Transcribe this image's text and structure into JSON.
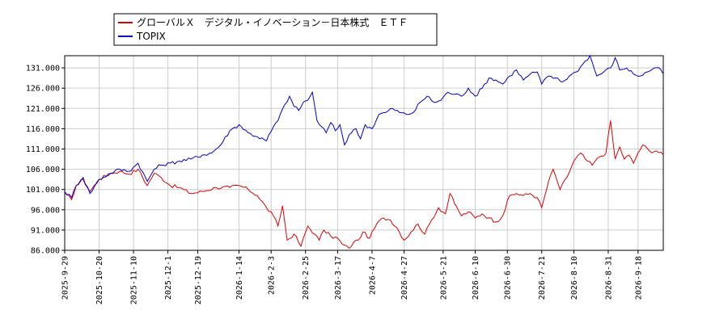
{
  "chart_data": {
    "type": "line",
    "ylim": [
      86,
      134
    ],
    "y_ticks": [
      "86.000",
      "91.000",
      "96.000",
      "101.000",
      "106.000",
      "111.000",
      "116.000",
      "121.000",
      "126.000",
      "131.000"
    ],
    "y_tick_values": [
      86,
      91,
      96,
      101,
      106,
      111,
      116,
      121,
      126,
      131
    ],
    "x_tick_labels": [
      "2025-9-29",
      "2025-10-20",
      "2025-11-10",
      "2025-12-1",
      "2025-12-19",
      "2026-1-14",
      "2026-2-3",
      "2026-2-25",
      "2026-3-17",
      "2026-4-7",
      "2026-4-27",
      "2026-5-21",
      "2026-6-10",
      "2026-6-30",
      "2026-7-21",
      "2026-8-10",
      "2026-8-31",
      "2026-9-18"
    ],
    "x_tick_index": [
      0,
      15,
      30,
      45,
      58,
      76,
      90,
      105,
      119,
      134,
      148,
      165,
      179,
      193,
      208,
      222,
      237,
      250
    ],
    "n_points": 262,
    "grid": true,
    "legend_position": "top-left",
    "series": [
      {
        "name": "グローバルＸ　デジタル・イノベーション－日本株式　ＥＴＦ",
        "color": "#dd0000",
        "keypoints": [
          [
            0,
            100
          ],
          [
            3,
            98.5
          ],
          [
            5,
            102
          ],
          [
            8,
            103.5
          ],
          [
            11,
            100.5
          ],
          [
            15,
            103.5
          ],
          [
            20,
            105
          ],
          [
            24,
            105.5
          ],
          [
            28,
            104.8
          ],
          [
            32,
            106
          ],
          [
            36,
            102
          ],
          [
            39,
            105
          ],
          [
            42,
            104
          ],
          [
            46,
            102
          ],
          [
            50,
            101.5
          ],
          [
            55,
            100
          ],
          [
            60,
            100.5
          ],
          [
            66,
            101.5
          ],
          [
            72,
            101.5
          ],
          [
            76,
            102
          ],
          [
            80,
            101
          ],
          [
            84,
            99.5
          ],
          [
            88,
            96.5
          ],
          [
            91,
            94.5
          ],
          [
            93,
            92
          ],
          [
            95,
            97
          ],
          [
            97,
            88.5
          ],
          [
            100,
            90
          ],
          [
            103,
            87
          ],
          [
            106,
            92
          ],
          [
            109,
            90
          ],
          [
            111,
            88.5
          ],
          [
            113,
            91
          ],
          [
            116,
            89.5
          ],
          [
            119,
            89
          ],
          [
            121,
            87.5
          ],
          [
            124,
            86.5
          ],
          [
            126,
            88
          ],
          [
            128,
            88.5
          ],
          [
            130,
            90.5
          ],
          [
            133,
            89
          ],
          [
            136,
            92.5
          ],
          [
            139,
            94
          ],
          [
            142,
            93.5
          ],
          [
            145,
            91.5
          ],
          [
            148,
            88.5
          ],
          [
            151,
            90.5
          ],
          [
            154,
            92.5
          ],
          [
            157,
            90
          ],
          [
            160,
            93.5
          ],
          [
            163,
            96.5
          ],
          [
            166,
            95
          ],
          [
            168,
            100
          ],
          [
            170,
            97.5
          ],
          [
            173,
            94.5
          ],
          [
            176,
            95.5
          ],
          [
            179,
            94
          ],
          [
            182,
            95
          ],
          [
            185,
            94
          ],
          [
            188,
            93
          ],
          [
            191,
            94.5
          ],
          [
            194,
            99.5
          ],
          [
            197,
            100
          ],
          [
            200,
            99.5
          ],
          [
            203,
            100
          ],
          [
            206,
            99
          ],
          [
            208,
            96.5
          ],
          [
            211,
            103
          ],
          [
            213,
            106
          ],
          [
            216,
            101
          ],
          [
            219,
            104
          ],
          [
            222,
            108
          ],
          [
            225,
            110
          ],
          [
            227,
            108.5
          ],
          [
            230,
            107
          ],
          [
            233,
            109
          ],
          [
            236,
            110
          ],
          [
            238,
            118
          ],
          [
            240,
            108.5
          ],
          [
            242,
            111.5
          ],
          [
            244,
            108.5
          ],
          [
            246,
            109.5
          ],
          [
            248,
            107.5
          ],
          [
            250,
            110
          ],
          [
            252,
            112
          ],
          [
            255,
            110.5
          ],
          [
            258,
            110.5
          ],
          [
            261,
            109.5
          ]
        ]
      },
      {
        "name": "TOPIX",
        "color": "#0000cc",
        "keypoints": [
          [
            0,
            100.5
          ],
          [
            3,
            99
          ],
          [
            5,
            102
          ],
          [
            8,
            104
          ],
          [
            11,
            100
          ],
          [
            15,
            103.5
          ],
          [
            20,
            105
          ],
          [
            24,
            106
          ],
          [
            28,
            105.5
          ],
          [
            32,
            107.5
          ],
          [
            36,
            103
          ],
          [
            39,
            106
          ],
          [
            42,
            107
          ],
          [
            46,
            107.5
          ],
          [
            50,
            108
          ],
          [
            55,
            108.5
          ],
          [
            60,
            109.5
          ],
          [
            64,
            110
          ],
          [
            68,
            112
          ],
          [
            72,
            115.5
          ],
          [
            76,
            117
          ],
          [
            80,
            115
          ],
          [
            84,
            114
          ],
          [
            88,
            113
          ],
          [
            91,
            116.5
          ],
          [
            93,
            118
          ],
          [
            96,
            122
          ],
          [
            98,
            124
          ],
          [
            100,
            121.5
          ],
          [
            102,
            120.5
          ],
          [
            104,
            122.5
          ],
          [
            106,
            123
          ],
          [
            108,
            125
          ],
          [
            110,
            118
          ],
          [
            112,
            116.5
          ],
          [
            114,
            115
          ],
          [
            116,
            117.5
          ],
          [
            118,
            115.5
          ],
          [
            120,
            117
          ],
          [
            122,
            112
          ],
          [
            124,
            114.5
          ],
          [
            127,
            116
          ],
          [
            129,
            113.5
          ],
          [
            131,
            117
          ],
          [
            134,
            116
          ],
          [
            137,
            119.5
          ],
          [
            140,
            120
          ],
          [
            143,
            121
          ],
          [
            146,
            120
          ],
          [
            149,
            119.5
          ],
          [
            152,
            120
          ],
          [
            155,
            122.5
          ],
          [
            158,
            124
          ],
          [
            161,
            122.5
          ],
          [
            164,
            123
          ],
          [
            167,
            125
          ],
          [
            170,
            124.5
          ],
          [
            173,
            124
          ],
          [
            176,
            126
          ],
          [
            179,
            124
          ],
          [
            182,
            126
          ],
          [
            185,
            128.5
          ],
          [
            188,
            128
          ],
          [
            191,
            127
          ],
          [
            194,
            129
          ],
          [
            197,
            130.5
          ],
          [
            200,
            128
          ],
          [
            203,
            129.5
          ],
          [
            206,
            130
          ],
          [
            208,
            127
          ],
          [
            211,
            129
          ],
          [
            214,
            128.5
          ],
          [
            217,
            127.5
          ],
          [
            220,
            129
          ],
          [
            223,
            130
          ],
          [
            226,
            132
          ],
          [
            229,
            134
          ],
          [
            232,
            129
          ],
          [
            235,
            130
          ],
          [
            238,
            131
          ],
          [
            240,
            133.5
          ],
          [
            242,
            130.5
          ],
          [
            245,
            131
          ],
          [
            248,
            129.5
          ],
          [
            251,
            129
          ],
          [
            254,
            130
          ],
          [
            257,
            131
          ],
          [
            260,
            130.5
          ],
          [
            261,
            129.5
          ]
        ]
      }
    ]
  }
}
